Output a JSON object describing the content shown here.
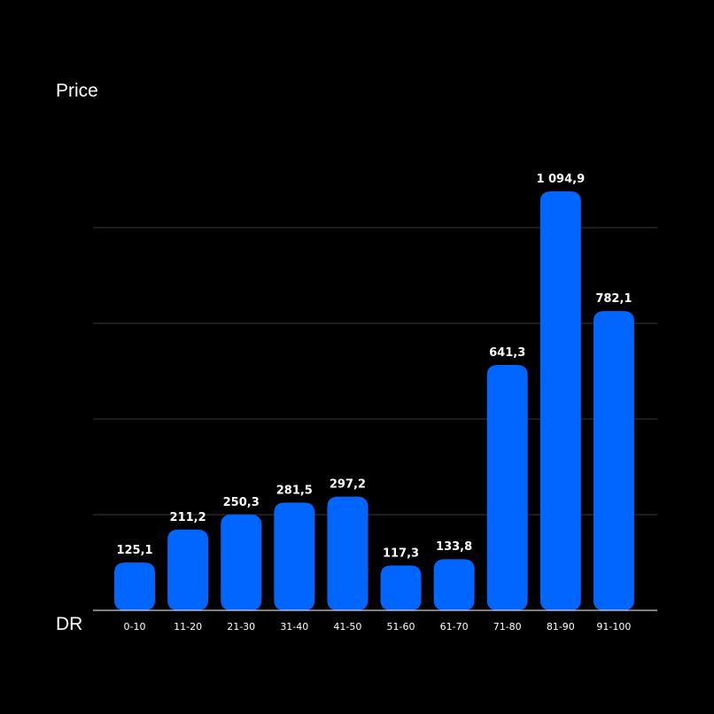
{
  "chart_data": {
    "type": "bar",
    "ylabel": "Price",
    "xlabel": "DR",
    "categories": [
      "0-10",
      "11-20",
      "21-30",
      "31-40",
      "41-50",
      "51-60",
      "61-70",
      "71-80",
      "81-90",
      "91-100"
    ],
    "values": [
      125.1,
      211.2,
      250.3,
      281.5,
      297.2,
      117.3,
      133.8,
      641.3,
      1094.9,
      782.1
    ],
    "value_labels": [
      "125,1",
      "211,2",
      "250,3",
      "281,5",
      "297,2",
      "117,3",
      "133,8",
      "641,3",
      "1 094,9",
      "782,1"
    ],
    "ylim": [
      0,
      1000
    ],
    "gridlines": [
      250,
      500,
      750,
      1000
    ],
    "grid": true,
    "colors": {
      "bar": "#0066ff",
      "background": "#000000",
      "grid": "#3a3a3a",
      "baseline": "#ffffff",
      "text": "#ffffff"
    }
  }
}
